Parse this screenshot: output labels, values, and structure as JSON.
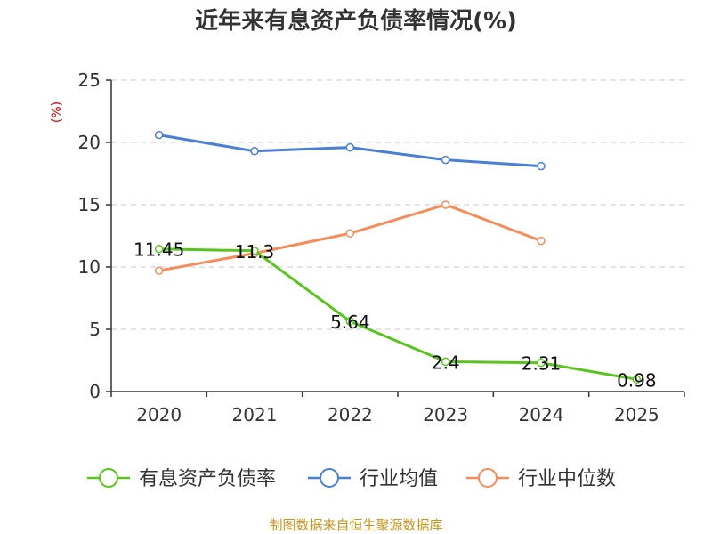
{
  "chart_data": {
    "type": "line",
    "title": "近年来有息资产负债率情况(%)",
    "ylabel_unit": "(%)",
    "categories": [
      "2020",
      "2021",
      "2022",
      "2023",
      "2024",
      "2025"
    ],
    "ylim": [
      0,
      25
    ],
    "yticks": [
      0,
      5,
      10,
      15,
      20,
      25
    ],
    "grid": true,
    "legend_position": "bottom",
    "series": [
      {
        "name": "有息资产负债率",
        "color": "#5ac41e",
        "values": [
          11.45,
          11.3,
          5.64,
          2.4,
          2.31,
          0.98
        ],
        "data_labels": [
          "11.45",
          "11.3",
          "5.64",
          "2.4",
          "2.31",
          "0.98"
        ]
      },
      {
        "name": "行业均值",
        "color": "#4a7fd6",
        "values": [
          20.6,
          19.3,
          19.6,
          18.6,
          18.1,
          null
        ]
      },
      {
        "name": "行业中位数",
        "color": "#f58c5a",
        "values": [
          9.7,
          11.1,
          12.7,
          15.0,
          12.1,
          null
        ]
      }
    ]
  },
  "source_text": "制图数据来自恒生聚源数据库"
}
